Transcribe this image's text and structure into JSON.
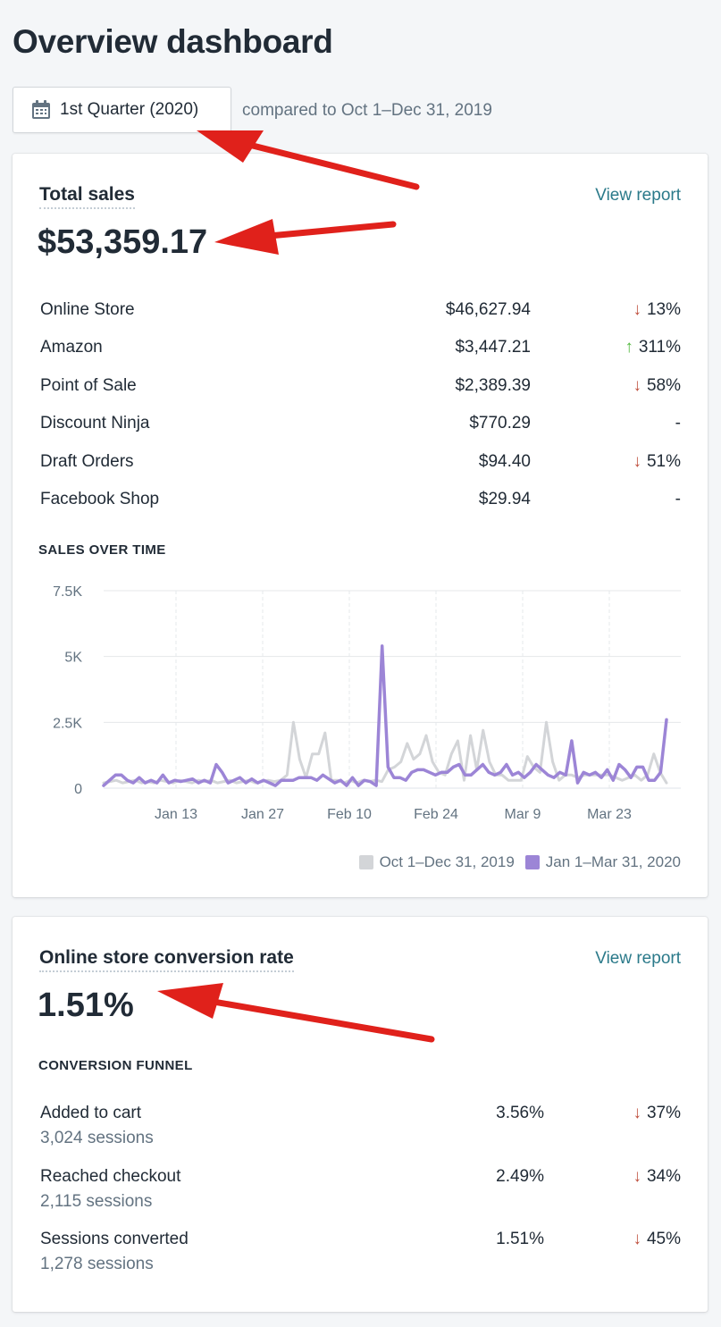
{
  "page": {
    "title": "Overview dashboard"
  },
  "date_filter": {
    "label": "1st Quarter (2020)",
    "compare_text": "compared to Oct 1–Dec 31, 2019"
  },
  "total_sales": {
    "title": "Total sales",
    "view_report": "View report",
    "value": "$53,359.17",
    "channels": [
      {
        "name": "Online Store",
        "amount": "$46,627.94",
        "direction": "down",
        "change": "13%"
      },
      {
        "name": "Amazon",
        "amount": "$3,447.21",
        "direction": "up",
        "change": "311%"
      },
      {
        "name": "Point of Sale",
        "amount": "$2,389.39",
        "direction": "down",
        "change": "58%"
      },
      {
        "name": "Discount Ninja",
        "amount": "$770.29",
        "direction": "none",
        "change": "-"
      },
      {
        "name": "Draft Orders",
        "amount": "$94.40",
        "direction": "down",
        "change": "51%"
      },
      {
        "name": "Facebook Shop",
        "amount": "$29.94",
        "direction": "none",
        "change": "-"
      }
    ],
    "arrows": {
      "down": "↓",
      "up": "↑"
    }
  },
  "sales_over_time": {
    "label": "SALES OVER TIME",
    "y_ticks": [
      "7.5K",
      "5K",
      "2.5K",
      "0"
    ],
    "x_ticks": [
      "Jan 13",
      "Jan 27",
      "Feb 10",
      "Feb 24",
      "Mar 9",
      "Mar 23"
    ],
    "legend": [
      "Oct 1–Dec 31, 2019",
      "Jan 1–Mar 31, 2020"
    ],
    "colors": {
      "previous": "#d3d5d8",
      "current": "#9c85d6"
    }
  },
  "chart_data": {
    "type": "line",
    "ylim": [
      0,
      7500
    ],
    "y_ticks": [
      0,
      2500,
      5000,
      7500
    ],
    "x_ticks": [
      "Jan 13",
      "Jan 27",
      "Feb 10",
      "Feb 24",
      "Mar 9",
      "Mar 23"
    ],
    "series": [
      {
        "name": "Oct 1–Dec 31, 2019",
        "values": [
          200,
          250,
          300,
          200,
          250,
          300,
          200,
          250,
          200,
          300,
          250,
          200,
          300,
          250,
          200,
          300,
          250,
          300,
          200,
          250,
          300,
          200,
          250,
          300,
          200,
          250,
          300,
          250,
          300,
          500,
          2500,
          1100,
          400,
          1300,
          1300,
          2100,
          300,
          300,
          200,
          300,
          200,
          300,
          250,
          300,
          250,
          700,
          800,
          1000,
          1700,
          1100,
          1300,
          2000,
          1000,
          600,
          500,
          1300,
          1800,
          300,
          2000,
          700,
          2200,
          1000,
          500,
          500,
          300,
          300,
          300,
          1200,
          800,
          600,
          2500,
          1000,
          300,
          500,
          500,
          400,
          500,
          500,
          500,
          500,
          500,
          400,
          300,
          400,
          500,
          300,
          500,
          1300,
          600,
          200
        ]
      },
      {
        "name": "Jan 1–Mar 31, 2020",
        "values": [
          100,
          300,
          500,
          500,
          300,
          200,
          400,
          200,
          300,
          200,
          500,
          200,
          300,
          250,
          300,
          350,
          200,
          300,
          200,
          900,
          600,
          200,
          300,
          400,
          200,
          350,
          200,
          300,
          200,
          100,
          300,
          300,
          300,
          400,
          400,
          400,
          300,
          500,
          350,
          200,
          300,
          100,
          400,
          100,
          300,
          250,
          100,
          5400,
          800,
          400,
          400,
          300,
          600,
          700,
          700,
          600,
          500,
          600,
          600,
          800,
          900,
          500,
          500,
          700,
          900,
          600,
          500,
          600,
          900,
          500,
          600,
          400,
          600,
          900,
          700,
          500,
          400,
          600,
          500,
          1800,
          200,
          600,
          500,
          600,
          400,
          700,
          300,
          900,
          700,
          400,
          800,
          800,
          300,
          300,
          600,
          2600
        ]
      }
    ]
  },
  "conversion": {
    "title": "Online store conversion rate",
    "view_report": "View report",
    "value": "1.51%",
    "funnel_label": "CONVERSION FUNNEL",
    "steps": [
      {
        "name": "Added to cart",
        "sessions": "3,024 sessions",
        "pct": "3.56%",
        "change": "37%"
      },
      {
        "name": "Reached checkout",
        "sessions": "2,115 sessions",
        "pct": "2.49%",
        "change": "34%"
      },
      {
        "name": "Sessions converted",
        "sessions": "1,278 sessions",
        "pct": "1.51%",
        "change": "45%"
      }
    ]
  }
}
